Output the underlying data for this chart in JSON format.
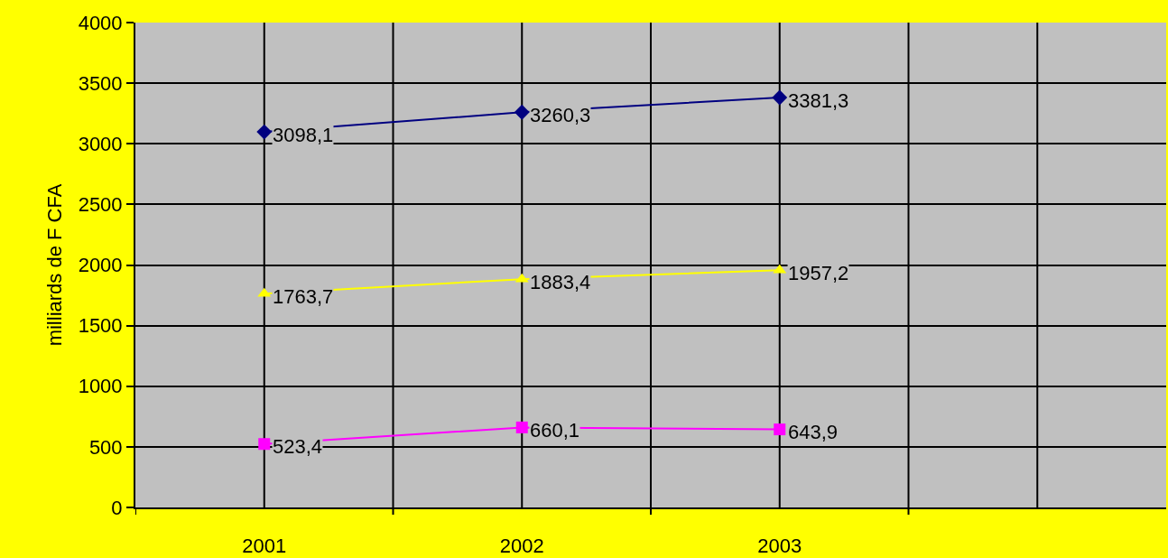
{
  "chart_data": {
    "type": "line",
    "ylabel": "milliards de F CFA",
    "categories": [
      "2001",
      "2002",
      "2003",
      null
    ],
    "ylim": [
      0,
      4000
    ],
    "yticks": [
      0,
      500,
      1000,
      1500,
      2000,
      2500,
      3000,
      3500,
      4000
    ],
    "grid": true,
    "series": [
      {
        "color": "#000080",
        "marker": "diamond",
        "values": [
          3098.1,
          3260.3,
          3381.3,
          null
        ],
        "value_labels": [
          "3098,1",
          "3260,3",
          "3381,3",
          null
        ]
      },
      {
        "color": "#ffff00",
        "marker": "triangle",
        "values": [
          1763.7,
          1883.4,
          1957.2,
          null
        ],
        "value_labels": [
          "1763,7",
          "1883,4",
          "1957,2",
          null
        ]
      },
      {
        "color": "#ff00ff",
        "marker": "square",
        "values": [
          523.4,
          660.1,
          643.9,
          null
        ],
        "value_labels": [
          "523,4",
          "660,1",
          "643,9",
          null
        ]
      }
    ]
  }
}
